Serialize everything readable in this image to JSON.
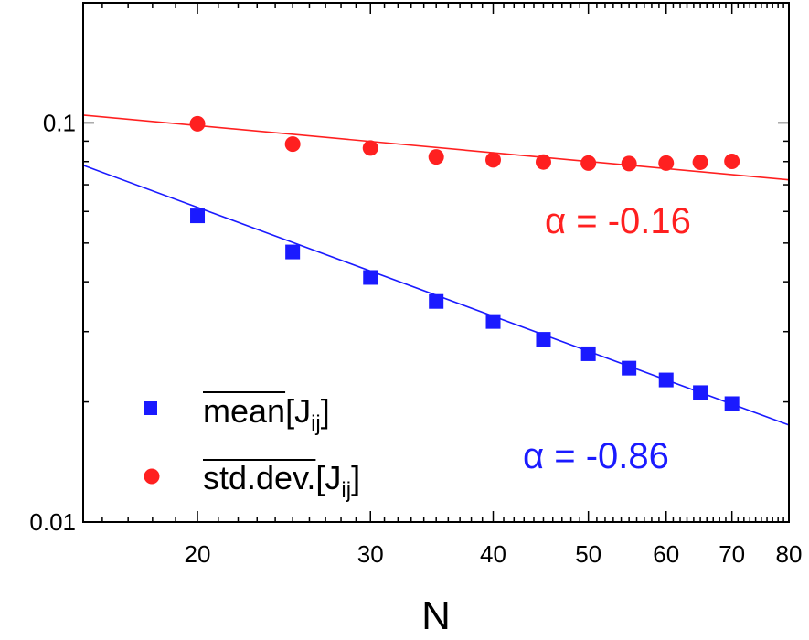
{
  "chart_data": {
    "type": "scatter",
    "x_scale": "log",
    "y_scale": "log",
    "xlabel": "N",
    "ylabel": "",
    "xlim": [
      15.3,
      80
    ],
    "ylim": [
      0.01,
      0.2
    ],
    "x_ticks": [
      20,
      30,
      40,
      50,
      60,
      70,
      80
    ],
    "x_tick_labels": [
      "20",
      "30",
      "40",
      "50",
      "60",
      "70",
      "80"
    ],
    "y_ticks": [
      0.01,
      0.1
    ],
    "y_tick_labels": [
      "0.01",
      "0.1"
    ],
    "grid": false,
    "legend_position": "bottom-left",
    "series": [
      {
        "name_main": "mean",
        "name_bracket": "[J",
        "name_sub": "ij",
        "name_close": "]",
        "marker": "square",
        "color": "#1a1aff",
        "x": [
          20,
          25,
          30,
          35,
          40,
          45,
          50,
          55,
          60,
          65,
          70
        ],
        "y": [
          0.0585,
          0.0475,
          0.041,
          0.0357,
          0.0318,
          0.0287,
          0.0264,
          0.0243,
          0.0227,
          0.0211,
          0.0198
        ],
        "fit": {
          "alpha": -0.86,
          "x": [
            15.3,
            80
          ],
          "y": [
            0.0783,
            0.0175
          ]
        },
        "annotation": "α = -0.86"
      },
      {
        "name_main": "std.dev.",
        "name_bracket": "[J",
        "name_sub": "ij",
        "name_close": "]",
        "marker": "circle",
        "color": "#ff2020",
        "x": [
          20,
          25,
          30,
          35,
          40,
          45,
          50,
          55,
          60,
          65,
          70
        ],
        "y": [
          0.0995,
          0.0885,
          0.0865,
          0.0822,
          0.0808,
          0.0798,
          0.0793,
          0.0791,
          0.0793,
          0.0797,
          0.0801
        ],
        "fit": {
          "alpha": -0.16,
          "x": [
            15.3,
            80
          ],
          "y": [
            0.1046,
            0.072
          ]
        },
        "annotation": "α = -0.16"
      }
    ]
  }
}
